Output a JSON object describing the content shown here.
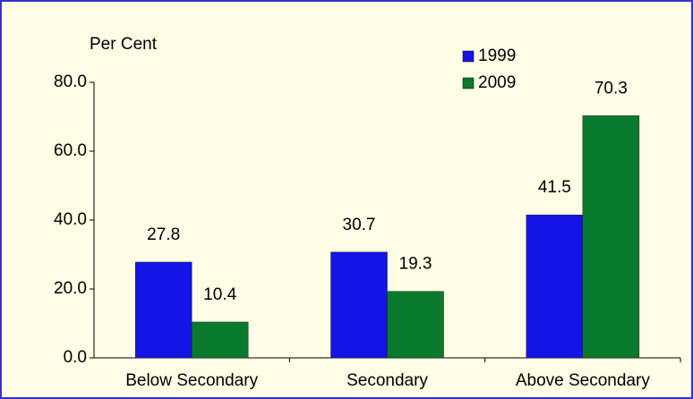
{
  "chart_data": {
    "type": "bar",
    "y_label": "Per Cent",
    "categories": [
      "Below Secondary",
      "Secondary",
      "Above Secondary"
    ],
    "series": [
      {
        "name": "1999",
        "color": "#1414e6",
        "values": [
          27.8,
          30.7,
          41.5
        ]
      },
      {
        "name": "2009",
        "color": "#0a7a2e",
        "values": [
          10.4,
          19.3,
          70.3
        ]
      }
    ],
    "ylim": [
      0,
      80
    ],
    "yticks": [
      {
        "value": 0,
        "label": "0.0"
      },
      {
        "value": 20,
        "label": "20.0"
      },
      {
        "value": 40,
        "label": "40.0"
      },
      {
        "value": 60,
        "label": "60.0"
      },
      {
        "value": 80,
        "label": "80.0"
      }
    ]
  }
}
